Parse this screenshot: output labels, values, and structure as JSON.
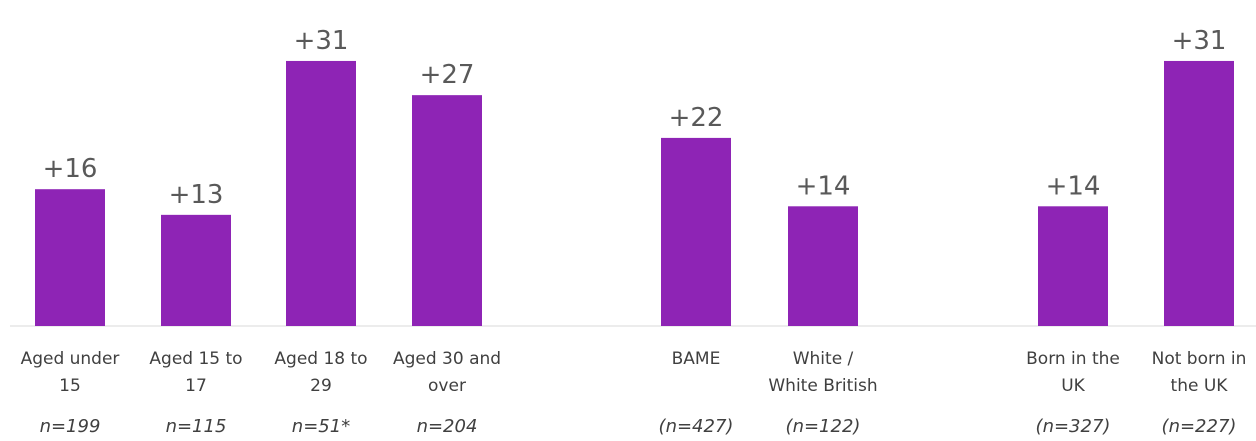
{
  "chart_data": {
    "type": "bar",
    "title": "",
    "xlabel": "",
    "ylabel": "",
    "ylim": [
      0,
      35
    ],
    "grid": false,
    "legend": "none",
    "bar_color": "#8e24b5",
    "categories": [
      {
        "label_lines": [
          "Aged under",
          "15"
        ],
        "n": "n=199"
      },
      {
        "label_lines": [
          "Aged 15 to",
          "17"
        ],
        "n": "n=115"
      },
      {
        "label_lines": [
          "Aged 18 to",
          "29"
        ],
        "n": "n=51*"
      },
      {
        "label_lines": [
          "Aged 30 and",
          "over"
        ],
        "n": "n=204"
      },
      {
        "label_lines": [
          "BAME"
        ],
        "n": "(n=427)"
      },
      {
        "label_lines": [
          "White /",
          "White British"
        ],
        "n": "(n=122)"
      },
      {
        "label_lines": [
          "Born in the",
          "UK"
        ],
        "n": "(n=327)"
      },
      {
        "label_lines": [
          "Not born in",
          "the UK"
        ],
        "n": "(n=227)"
      }
    ],
    "values": [
      16,
      13,
      31,
      27,
      22,
      14,
      14,
      31
    ],
    "value_labels": [
      "+16",
      "+13",
      "+31",
      "+27",
      "+22",
      "+14",
      "+14",
      "+31"
    ]
  }
}
